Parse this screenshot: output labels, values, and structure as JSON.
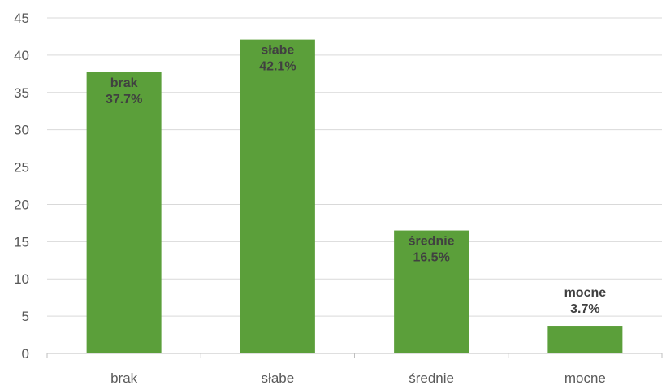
{
  "chart_data": {
    "type": "bar",
    "categories": [
      "brak",
      "słabe",
      "średnie",
      "mocne"
    ],
    "values": [
      37.7,
      42.1,
      16.5,
      3.7
    ],
    "data_labels": [
      {
        "name": "brak",
        "value": "37.7%"
      },
      {
        "name": "słabe",
        "value": "42.1%"
      },
      {
        "name": "średnie",
        "value": "16.5%"
      },
      {
        "name": "mocne",
        "value": "3.7%"
      }
    ],
    "title": "",
    "xlabel": "",
    "ylabel": "",
    "ylim": [
      0,
      45
    ],
    "yticks": [
      "0",
      "5",
      "10",
      "15",
      "20",
      "25",
      "30",
      "35",
      "40",
      "45"
    ],
    "grid": true,
    "legend": "none",
    "bar_color": "#5b9f3a"
  }
}
